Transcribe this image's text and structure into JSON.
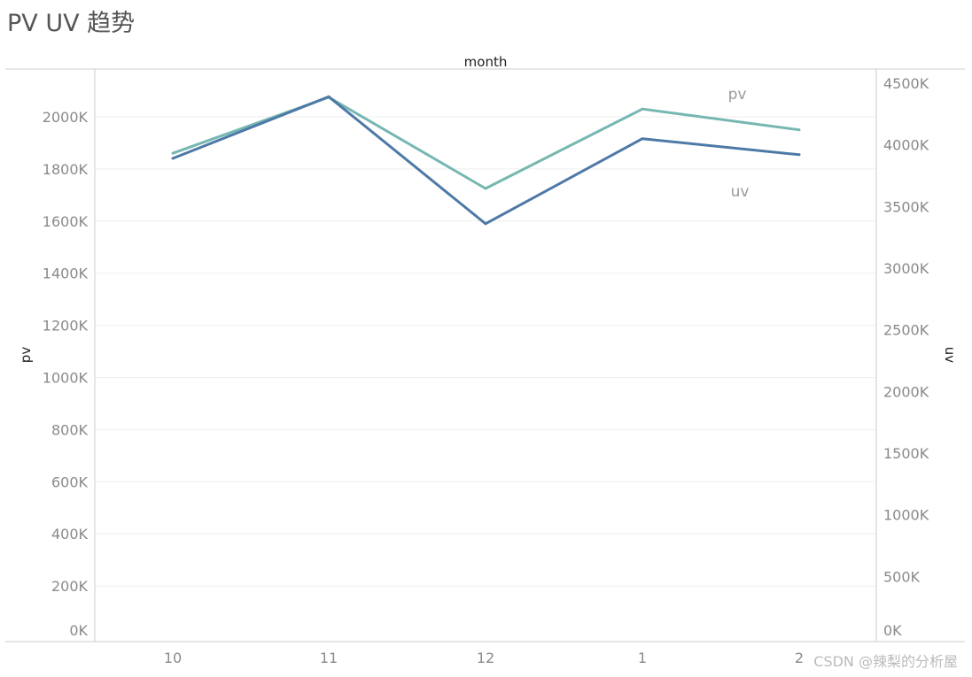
{
  "chart_data": {
    "type": "line",
    "title": "PV UV 趋势",
    "xlabel": "month",
    "categories": [
      "10",
      "11",
      "12",
      "1",
      "2"
    ],
    "y_left": {
      "label": "pv",
      "lim": [
        0,
        2150
      ],
      "ticks": [
        0,
        200,
        400,
        600,
        800,
        1000,
        1200,
        1400,
        1600,
        1800,
        2000
      ],
      "tick_labels": [
        "0K",
        "200K",
        "400K",
        "600K",
        "800K",
        "1000K",
        "1200K",
        "1400K",
        "1600K",
        "1800K",
        "2000K"
      ]
    },
    "y_right": {
      "label": "uv",
      "lim": [
        0,
        4600
      ],
      "ticks": [
        0,
        500,
        1000,
        1500,
        2000,
        2500,
        3000,
        3500,
        4000,
        4500
      ],
      "tick_labels": [
        "0K",
        "500K",
        "1000K",
        "1500K",
        "2000K",
        "2500K",
        "3000K",
        "3500K",
        "4000K",
        "4500K"
      ]
    },
    "series": [
      {
        "name": "pv",
        "axis": "left",
        "color": "#76b7b2",
        "values": [
          1860,
          2075,
          1725,
          2030,
          1950
        ]
      },
      {
        "name": "uv",
        "axis": "right",
        "color": "#4e79a7",
        "values": [
          3890,
          4390,
          3360,
          4050,
          3920
        ]
      }
    ],
    "grid": true,
    "legend": "inline labels at right"
  },
  "watermark": "CSDN @辣梨的分析屋"
}
